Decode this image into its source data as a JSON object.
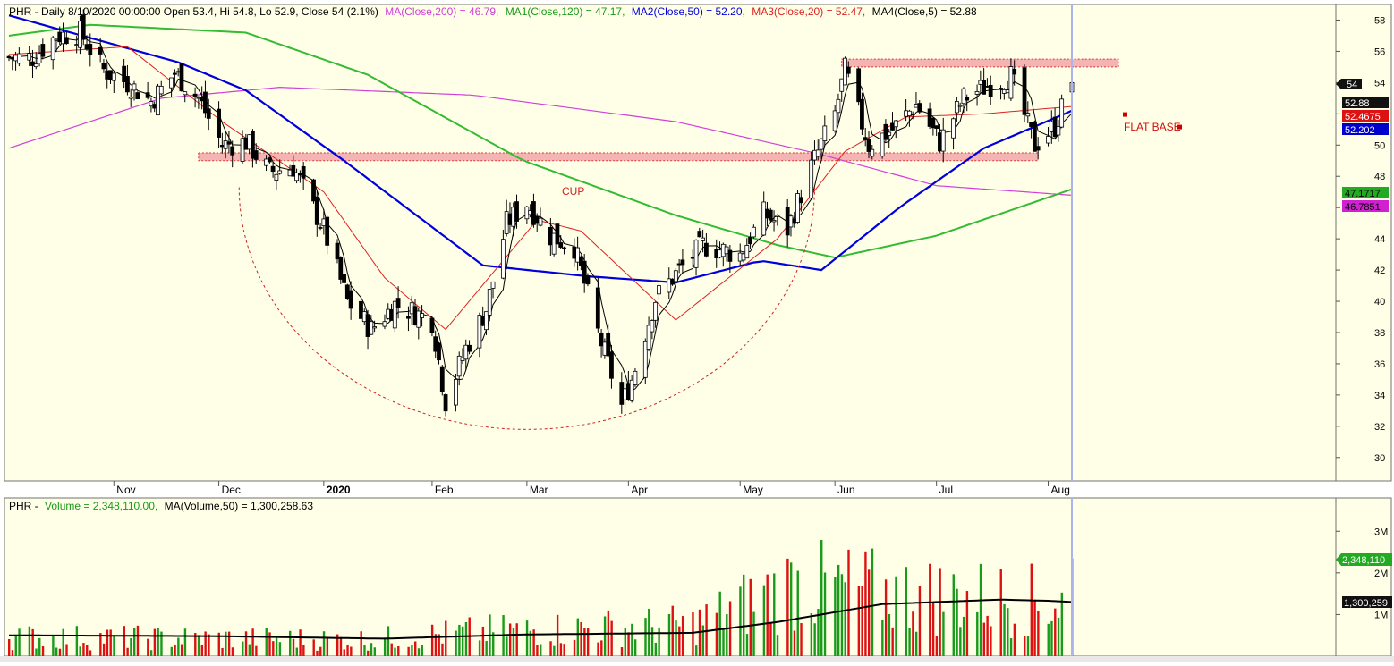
{
  "header": {
    "ticker_info": "PHR - Daily 8/10/2020 00:00:00 Open 53.4, Hi 54.8, Lo 52.9, Close 54 (2.1%)",
    "ma200": "MA(Close,200) = 46.79,",
    "ma120": "MA1(Close,120) = 47.17,",
    "ma50": "MA2(Close,50) = 52.20,",
    "ma20": "MA3(Close,20) = 52.47,",
    "ma5": "MA4(Close,5) = 52.88"
  },
  "volume_header": {
    "prefix": "PHR -",
    "volume": "Volume = 2,348,110.00,",
    "ma": "MA(Volume,50) = 1,300,258.63"
  },
  "price_axis_labels": {
    "last": "54",
    "ma5": "52.88",
    "ma20": "52.4675",
    "ma50": "52.202",
    "ma120": "47.1717",
    "ma200": "46.7851"
  },
  "volume_axis_labels": {
    "last": "2,348,110",
    "ma": "1,300,259"
  },
  "annotations": {
    "cup": "CUP",
    "flat_base": "FLAT BASE"
  },
  "colors": {
    "background": "#ffffe8",
    "ma200": "#d040d8",
    "ma120": "#33bb33",
    "ma50": "#0000dd",
    "ma20": "#dd2222",
    "ma5": "#000000",
    "volume_up": "#1a9a1a",
    "volume_down": "#dd1111",
    "zone_fill": "#f4b4b4",
    "cursor_line": "#aab4ee"
  },
  "chart_data": [
    {
      "type": "candlestick",
      "title": "PHR - Daily",
      "ylim": [
        28.5,
        59
      ],
      "yticks": [
        30,
        32,
        34,
        36,
        38,
        40,
        42,
        44,
        46,
        48,
        50,
        52,
        54,
        56,
        58
      ],
      "x_month_labels": [
        "Nov",
        "Dec",
        "2020",
        "Feb",
        "Mar",
        "Apr",
        "May",
        "Jun",
        "Jul",
        "Aug"
      ],
      "close_anchors": [
        [
          "2019-10-08",
          55.6
        ],
        [
          "2019-10-15",
          57.0
        ],
        [
          "2019-10-22",
          57.2
        ],
        [
          "2019-10-29",
          54.8
        ],
        [
          "2019-11-05",
          54.0
        ],
        [
          "2019-11-12",
          52.8
        ],
        [
          "2019-11-19",
          54.6
        ],
        [
          "2019-11-26",
          53.0
        ],
        [
          "2019-12-03",
          50.0
        ],
        [
          "2019-12-10",
          50.2
        ],
        [
          "2019-12-17",
          48.3
        ],
        [
          "2019-12-24",
          48.6
        ],
        [
          "2020-01-02",
          44.6
        ],
        [
          "2020-01-09",
          40.0
        ],
        [
          "2020-01-16",
          38.2
        ],
        [
          "2020-01-23",
          39.8
        ],
        [
          "2020-02-03",
          38.8
        ],
        [
          "2020-02-07",
          33.6
        ],
        [
          "2020-02-13",
          37.0
        ],
        [
          "2020-02-19",
          39.5
        ],
        [
          "2020-02-25",
          45.0
        ],
        [
          "2020-03-02",
          46.3
        ],
        [
          "2020-03-09",
          44.2
        ],
        [
          "2020-03-16",
          43.5
        ],
        [
          "2020-03-23",
          38.0
        ],
        [
          "2020-03-30",
          33.3
        ],
        [
          "2020-04-02",
          35.0
        ],
        [
          "2020-04-09",
          40.2
        ],
        [
          "2020-04-16",
          42.0
        ],
        [
          "2020-04-23",
          43.6
        ],
        [
          "2020-05-04",
          43.0
        ],
        [
          "2020-05-11",
          45.6
        ],
        [
          "2020-05-18",
          44.6
        ],
        [
          "2020-05-25",
          48.6
        ],
        [
          "2020-06-01",
          52.0
        ],
        [
          "2020-06-04",
          54.8
        ],
        [
          "2020-06-11",
          50.0
        ],
        [
          "2020-06-18",
          51.0
        ],
        [
          "2020-06-25",
          52.6
        ],
        [
          "2020-07-02",
          50.2
        ],
        [
          "2020-07-09",
          53.0
        ],
        [
          "2020-07-16",
          53.8
        ],
        [
          "2020-07-23",
          54.4
        ],
        [
          "2020-07-30",
          50.0
        ],
        [
          "2020-08-05",
          51.2
        ],
        [
          "2020-08-10",
          54.0
        ]
      ],
      "moving_averages": [
        {
          "name": "MA(Close,200)",
          "points": [
            [
              "2019-10-01",
              49.8
            ],
            [
              "2019-11-15",
              53.0
            ],
            [
              "2019-12-20",
              53.7
            ],
            [
              "2020-02-15",
              53.2
            ],
            [
              "2020-04-15",
              51.5
            ],
            [
              "2020-05-26",
              49.5
            ],
            [
              "2020-07-01",
              47.4
            ],
            [
              "2020-08-10",
              46.79
            ]
          ]
        },
        {
          "name": "MA1(Close,120)",
          "points": [
            [
              "2019-10-01",
              57.0
            ],
            [
              "2019-10-25",
              57.7
            ],
            [
              "2019-12-10",
              57.2
            ],
            [
              "2020-01-15",
              54.5
            ],
            [
              "2020-03-01",
              49.0
            ],
            [
              "2020-04-15",
              45.5
            ],
            [
              "2020-05-15",
              43.6
            ],
            [
              "2020-06-01",
              42.8
            ],
            [
              "2020-07-01",
              44.2
            ],
            [
              "2020-08-10",
              47.17
            ]
          ]
        },
        {
          "name": "MA2(Close,50)",
          "points": [
            [
              "2019-10-01",
              58.3
            ],
            [
              "2019-11-20",
              55.3
            ],
            [
              "2019-12-10",
              53.5
            ],
            [
              "2020-01-08",
              49.0
            ],
            [
              "2020-02-18",
              42.3
            ],
            [
              "2020-03-20",
              41.6
            ],
            [
              "2020-04-15",
              41.2
            ],
            [
              "2020-05-10",
              42.6
            ],
            [
              "2020-05-28",
              42.0
            ],
            [
              "2020-06-20",
              46.0
            ],
            [
              "2020-07-15",
              49.8
            ],
            [
              "2020-08-10",
              52.2
            ]
          ]
        },
        {
          "name": "MA3(Close,20)",
          "points": [
            [
              "2019-10-01",
              55.8
            ],
            [
              "2019-11-05",
              56.3
            ],
            [
              "2019-12-03",
              51.5
            ],
            [
              "2020-01-02",
              47.0
            ],
            [
              "2020-01-20",
              41.5
            ],
            [
              "2020-02-07",
              38.2
            ],
            [
              "2020-03-05",
              45.2
            ],
            [
              "2020-03-18",
              44.5
            ],
            [
              "2020-04-15",
              38.8
            ],
            [
              "2020-05-15",
              44.0
            ],
            [
              "2020-06-04",
              49.6
            ],
            [
              "2020-06-22",
              51.8
            ],
            [
              "2020-07-15",
              52.0
            ],
            [
              "2020-08-10",
              52.47
            ]
          ]
        },
        {
          "name": "MA4(Close,5)"
        }
      ],
      "horizontal_zones": [
        {
          "y": [
            49.0,
            49.5
          ],
          "from": "2019-11-26",
          "to": "2020-07-31"
        },
        {
          "y": [
            55.0,
            55.5
          ],
          "from": "2020-06-03",
          "to": "2020-08-31"
        }
      ],
      "annotations": [
        {
          "text": "CUP",
          "shape": "dashed-ellipse",
          "date": "2020-03-02",
          "value": 47.3
        },
        {
          "text": "FLAT BASE",
          "date": "2020-09-03",
          "value": 51.5
        }
      ]
    },
    {
      "type": "bar",
      "title": "Volume",
      "ylim": [
        0,
        3800000
      ],
      "yticks": [
        1000000,
        2000000,
        3000000
      ],
      "ytick_labels": [
        "1M",
        "2M",
        "3M"
      ],
      "last_volume": 2348110,
      "volume_ma50_last": 1300258.63,
      "volume_anchors": [
        [
          "2019-10-01",
          400000
        ],
        [
          "2020-01-15",
          350000
        ],
        [
          "2020-02-20",
          520000
        ],
        [
          "2020-04-20",
          650000
        ],
        [
          "2020-05-20",
          1500000
        ],
        [
          "2020-06-20",
          1300000
        ],
        [
          "2020-07-20",
          1200000
        ],
        [
          "2020-08-10",
          1100000
        ]
      ],
      "volume_ma_points": [
        [
          "2019-10-01",
          500000
        ],
        [
          "2019-12-01",
          480000
        ],
        [
          "2020-01-20",
          420000
        ],
        [
          "2020-03-01",
          520000
        ],
        [
          "2020-04-20",
          560000
        ],
        [
          "2020-05-15",
          820000
        ],
        [
          "2020-06-15",
          1250000
        ],
        [
          "2020-07-20",
          1360000
        ],
        [
          "2020-08-03",
          1330000
        ],
        [
          "2020-08-10",
          1300258.63
        ]
      ]
    }
  ]
}
